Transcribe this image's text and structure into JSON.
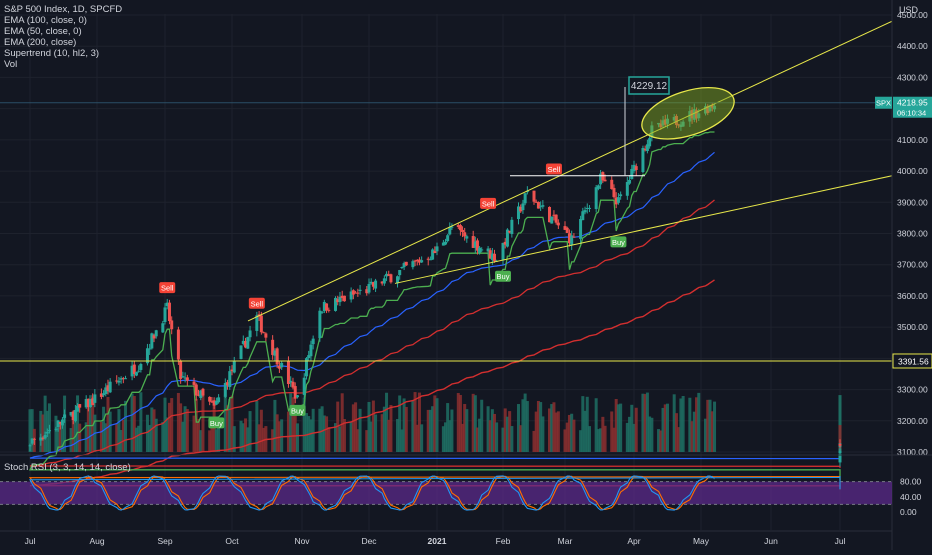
{
  "chart_title": "S&P 500 Index, 1D, SPCFD",
  "indicators": [
    "EMA (100, close, 0)",
    "EMA (50, close, 0)",
    "EMA (200, close)",
    "Supertrend (10, hl2, 3)",
    "Vol"
  ],
  "currency": "USD",
  "rsi_label": "Stoch RSI (3, 3, 14, 14, close)",
  "price_tag": {
    "symbol": "SPX",
    "price": "4218.95",
    "countdown": "06:10:34"
  },
  "callout": "4229.12",
  "hline_label": "3391.56",
  "colors": {
    "bg": "#131722",
    "up": "#26a69a",
    "down": "#ef5350",
    "grid": "#1e222d",
    "trend": "#e7e74a",
    "ema100": "#2962ff",
    "ema200": "#d32f2f",
    "supertrend_up": "#4caf50",
    "supertrend_down": "#f44336",
    "rsi_band": "#5b2a8a",
    "rsi_k": "#2196f3",
    "rsi_d": "#ff6d00"
  },
  "chart_data": {
    "type": "candlestick",
    "y_axis_ticks": [
      "4500.00",
      "4400.00",
      "4300.00",
      "4200.00",
      "4100.00",
      "4000.00",
      "3900.00",
      "3800.00",
      "3700.00",
      "3600.00",
      "3500.00",
      "3400.00",
      "3300.00",
      "3200.00",
      "3100.00"
    ],
    "ylim": [
      3100,
      4500
    ],
    "x_axis_ticks": [
      "Jul",
      "Aug",
      "Sep",
      "Oct",
      "Nov",
      "Dec",
      "2021",
      "Feb",
      "Mar",
      "Apr",
      "May",
      "Jun",
      "Jul"
    ],
    "rsi_ticks": [
      "80.00",
      "40.00",
      "0.00"
    ],
    "signals": [
      {
        "type": "Sell",
        "date": "2020-09-02",
        "price": 3580
      },
      {
        "type": "Buy",
        "date": "2020-09-24",
        "price": 3230
      },
      {
        "type": "Sell",
        "date": "2020-10-12",
        "price": 3530
      },
      {
        "type": "Buy",
        "date": "2020-10-30",
        "price": 3270
      },
      {
        "type": "Sell",
        "date": "2021-01-25",
        "price": 3850
      },
      {
        "type": "Buy",
        "date": "2021-02-01",
        "price": 3700
      },
      {
        "type": "Sell",
        "date": "2021-02-24",
        "price": 3960
      },
      {
        "type": "Buy",
        "date": "2021-03-25",
        "price": 3810
      }
    ],
    "key_levels": {
      "horizontal": 3391.56,
      "resistance": 3985,
      "high": 4229.12,
      "last": 4218.95
    }
  }
}
